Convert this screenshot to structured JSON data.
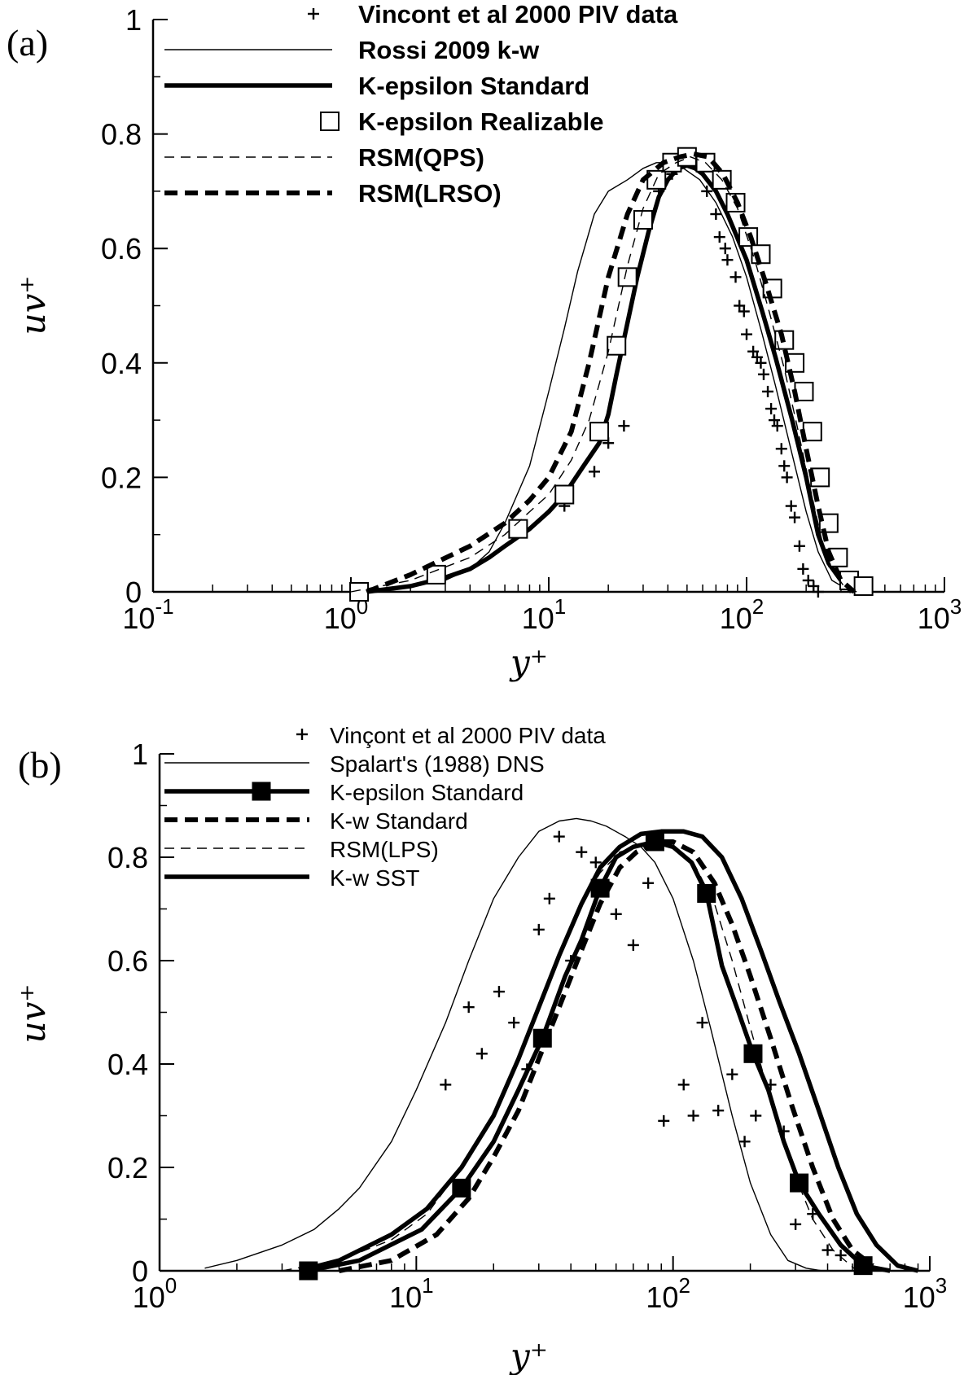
{
  "chart_data": [
    {
      "type": "line",
      "panel_label": "(a)",
      "xlabel": "y⁺",
      "ylabel": "uv⁺",
      "x_scale": "log",
      "xlim": [
        0.1,
        1000
      ],
      "ylim": [
        0,
        1
      ],
      "x_ticks": [
        {
          "value": 0.1,
          "base": "10",
          "exp": "-1"
        },
        {
          "value": 1,
          "base": "10",
          "exp": "0"
        },
        {
          "value": 10,
          "base": "10",
          "exp": "1"
        },
        {
          "value": 100,
          "base": "10",
          "exp": "2"
        },
        {
          "value": 1000,
          "base": "10",
          "exp": "3"
        }
      ],
      "y_ticks": [
        {
          "value": 0,
          "label": "0"
        },
        {
          "value": 0.2,
          "label": "0.2"
        },
        {
          "value": 0.4,
          "label": "0.4"
        },
        {
          "value": 0.6,
          "label": "0.6"
        },
        {
          "value": 0.8,
          "label": "0.8"
        },
        {
          "value": 1,
          "label": "1"
        }
      ],
      "legend_position": "top-left",
      "series": [
        {
          "name": "Vincont et al 2000 PIV data",
          "style": "plus",
          "x": [
            12,
            17,
            20,
            24,
            36,
            42,
            48,
            52,
            58,
            63,
            70,
            73,
            78,
            80,
            88,
            92,
            97,
            100,
            108,
            113,
            118,
            122,
            128,
            133,
            138,
            143,
            150,
            155,
            160,
            168,
            175,
            185,
            193,
            205,
            218,
            230
          ],
          "y": [
            0.15,
            0.21,
            0.26,
            0.29,
            0.7,
            0.73,
            0.76,
            0.75,
            0.74,
            0.7,
            0.66,
            0.62,
            0.6,
            0.58,
            0.55,
            0.5,
            0.49,
            0.45,
            0.42,
            0.41,
            0.4,
            0.38,
            0.35,
            0.32,
            0.3,
            0.29,
            0.25,
            0.22,
            0.2,
            0.15,
            0.13,
            0.08,
            0.04,
            0.02,
            0.01,
            0.0
          ]
        },
        {
          "name": "Rossi 2009 k-w",
          "style": "thin",
          "x": [
            1,
            2,
            3,
            4,
            5,
            6,
            8,
            10,
            12,
            14,
            17,
            20,
            25,
            30,
            35,
            40,
            48,
            58,
            70,
            85,
            100,
            120,
            140,
            170,
            200,
            230,
            270,
            320,
            370
          ],
          "y": [
            0.0,
            0.01,
            0.02,
            0.04,
            0.07,
            0.12,
            0.22,
            0.35,
            0.46,
            0.56,
            0.66,
            0.7,
            0.72,
            0.74,
            0.75,
            0.75,
            0.74,
            0.72,
            0.68,
            0.62,
            0.55,
            0.45,
            0.36,
            0.24,
            0.14,
            0.07,
            0.02,
            0.005,
            0.0
          ]
        },
        {
          "name": "K-epsilon Standard",
          "style": "thick",
          "x": [
            1.2,
            2,
            3,
            4,
            5,
            6,
            8,
            10,
            12,
            15,
            18,
            20,
            22,
            25,
            28,
            32,
            36,
            40,
            45,
            50,
            55,
            60,
            70,
            80,
            100,
            120,
            140,
            170,
            200,
            230,
            260,
            300,
            340
          ],
          "y": [
            0.0,
            0.01,
            0.025,
            0.04,
            0.06,
            0.08,
            0.11,
            0.14,
            0.17,
            0.22,
            0.26,
            0.31,
            0.38,
            0.47,
            0.55,
            0.63,
            0.69,
            0.72,
            0.74,
            0.745,
            0.74,
            0.73,
            0.7,
            0.66,
            0.58,
            0.49,
            0.41,
            0.3,
            0.2,
            0.1,
            0.05,
            0.02,
            0.0
          ]
        },
        {
          "name": "K-epsilon Realizable",
          "style": "square",
          "x": [
            1.1,
            2.7,
            7,
            12,
            18,
            22,
            25,
            30,
            35,
            42,
            50,
            62,
            75,
            88,
            102,
            118,
            135,
            155,
            175,
            195,
            215,
            235,
            260,
            290,
            330,
            390
          ],
          "y": [
            0.0,
            0.03,
            0.11,
            0.17,
            0.28,
            0.43,
            0.55,
            0.65,
            0.72,
            0.75,
            0.76,
            0.75,
            0.72,
            0.68,
            0.62,
            0.59,
            0.53,
            0.44,
            0.4,
            0.35,
            0.28,
            0.2,
            0.12,
            0.06,
            0.02,
            0.01
          ]
        },
        {
          "name": "RSM(QPS)",
          "style": "thin-dash",
          "x": [
            1,
            2,
            4,
            6,
            8,
            10,
            13,
            16,
            20,
            25,
            30,
            36,
            44,
            52,
            62,
            75,
            90,
            110,
            130,
            155,
            180,
            210,
            240,
            270,
            310,
            360
          ],
          "y": [
            0.0,
            0.02,
            0.06,
            0.1,
            0.14,
            0.17,
            0.23,
            0.3,
            0.42,
            0.57,
            0.67,
            0.73,
            0.75,
            0.76,
            0.75,
            0.72,
            0.67,
            0.58,
            0.49,
            0.39,
            0.29,
            0.18,
            0.09,
            0.04,
            0.01,
            0.0
          ]
        },
        {
          "name": "RSM(LRSO)",
          "style": "thick-dash",
          "x": [
            1.2,
            2,
            4,
            6,
            8,
            10,
            13,
            16,
            20,
            25,
            30,
            38,
            46,
            54,
            64,
            76,
            90,
            105,
            125,
            150,
            175,
            200,
            230,
            260,
            300,
            350
          ],
          "y": [
            0.0,
            0.03,
            0.08,
            0.12,
            0.16,
            0.2,
            0.28,
            0.4,
            0.55,
            0.66,
            0.72,
            0.75,
            0.76,
            0.765,
            0.76,
            0.73,
            0.68,
            0.62,
            0.54,
            0.45,
            0.35,
            0.25,
            0.15,
            0.07,
            0.02,
            0.0
          ]
        }
      ]
    },
    {
      "type": "line",
      "panel_label": "(b)",
      "xlabel": "y⁺",
      "ylabel": "uv⁺",
      "x_scale": "log",
      "xlim": [
        1,
        1000
      ],
      "ylim": [
        0,
        1
      ],
      "x_ticks": [
        {
          "value": 1,
          "base": "10",
          "exp": "0"
        },
        {
          "value": 10,
          "base": "10",
          "exp": "1"
        },
        {
          "value": 100,
          "base": "10",
          "exp": "2"
        },
        {
          "value": 1000,
          "base": "10",
          "exp": "3"
        }
      ],
      "y_ticks": [
        {
          "value": 0,
          "label": "0"
        },
        {
          "value": 0.2,
          "label": "0.2"
        },
        {
          "value": 0.4,
          "label": "0.4"
        },
        {
          "value": 0.6,
          "label": "0.6"
        },
        {
          "value": 0.8,
          "label": "0.8"
        },
        {
          "value": 1,
          "label": "1"
        }
      ],
      "legend_position": "top-left",
      "series": [
        {
          "name": "Vinçont et al 2000 PIV data",
          "style": "plus",
          "x": [
            13,
            16,
            18,
            21,
            24,
            27,
            30,
            33,
            36,
            40,
            44,
            50,
            60,
            70,
            80,
            92,
            110,
            120,
            130,
            150,
            170,
            190,
            210,
            240,
            270,
            300,
            350,
            400,
            450
          ],
          "y": [
            0.36,
            0.51,
            0.42,
            0.54,
            0.48,
            0.39,
            0.66,
            0.72,
            0.84,
            0.6,
            0.81,
            0.79,
            0.69,
            0.63,
            0.75,
            0.29,
            0.36,
            0.3,
            0.48,
            0.31,
            0.38,
            0.25,
            0.3,
            0.36,
            0.27,
            0.09,
            0.11,
            0.04,
            0.03
          ]
        },
        {
          "name": "Spalart's (1988) DNS",
          "style": "thin",
          "x": [
            1.5,
            2,
            3,
            4,
            5,
            6,
            8,
            10,
            13,
            16,
            20,
            25,
            30,
            36,
            42,
            48,
            55,
            65,
            75,
            85,
            100,
            120,
            140,
            170,
            200,
            240,
            280,
            330,
            380
          ],
          "y": [
            0.005,
            0.02,
            0.05,
            0.08,
            0.12,
            0.16,
            0.25,
            0.35,
            0.48,
            0.6,
            0.72,
            0.8,
            0.85,
            0.87,
            0.875,
            0.87,
            0.86,
            0.84,
            0.82,
            0.79,
            0.72,
            0.6,
            0.47,
            0.3,
            0.17,
            0.07,
            0.02,
            0.005,
            0.0
          ]
        },
        {
          "name": "K-epsilon Standard",
          "style": "thick-square",
          "x": [
            3.8,
            6,
            10.5,
            15,
            20,
            25,
            31,
            38,
            44,
            52,
            60,
            70,
            85,
            100,
            118,
            135,
            155,
            180,
            205,
            235,
            270,
            310,
            370,
            450,
            550,
            700
          ],
          "y": [
            0.0,
            0.02,
            0.08,
            0.16,
            0.25,
            0.35,
            0.45,
            0.57,
            0.64,
            0.74,
            0.8,
            0.82,
            0.83,
            0.82,
            0.79,
            0.73,
            0.59,
            0.5,
            0.42,
            0.35,
            0.25,
            0.17,
            0.11,
            0.05,
            0.01,
            0.0
          ]
        },
        {
          "name": "K-w Standard",
          "style": "thick-dash",
          "x": [
            5,
            8,
            12,
            16,
            20,
            25,
            30,
            36,
            44,
            52,
            62,
            72,
            85,
            100,
            120,
            145,
            170,
            200,
            240,
            290,
            350,
            420,
            500,
            600
          ],
          "y": [
            0.0,
            0.02,
            0.07,
            0.14,
            0.22,
            0.31,
            0.41,
            0.51,
            0.62,
            0.71,
            0.78,
            0.81,
            0.83,
            0.83,
            0.81,
            0.75,
            0.67,
            0.57,
            0.45,
            0.32,
            0.2,
            0.1,
            0.04,
            0.01
          ]
        },
        {
          "name": "RSM(LPS)",
          "style": "thin-dash",
          "x": [
            3,
            5,
            8,
            11,
            15,
            20,
            25,
            30,
            36,
            44,
            52,
            62,
            72,
            85,
            100,
            120,
            145,
            170,
            200,
            240,
            290,
            350,
            420,
            520
          ],
          "y": [
            0.0,
            0.02,
            0.06,
            0.11,
            0.2,
            0.3,
            0.41,
            0.51,
            0.61,
            0.71,
            0.77,
            0.81,
            0.82,
            0.83,
            0.82,
            0.79,
            0.71,
            0.6,
            0.47,
            0.33,
            0.2,
            0.1,
            0.04,
            0.0
          ]
        },
        {
          "name": "K-w SST",
          "style": "thick",
          "x": [
            3.5,
            5,
            8,
            11,
            15,
            20,
            25,
            30,
            36,
            44,
            52,
            62,
            75,
            90,
            110,
            130,
            155,
            185,
            220,
            260,
            310,
            370,
            440,
            520,
            620,
            750,
            900
          ],
          "y": [
            0.0,
            0.02,
            0.07,
            0.12,
            0.2,
            0.3,
            0.41,
            0.51,
            0.61,
            0.71,
            0.78,
            0.82,
            0.845,
            0.85,
            0.85,
            0.84,
            0.8,
            0.72,
            0.62,
            0.52,
            0.42,
            0.31,
            0.2,
            0.11,
            0.05,
            0.01,
            0.0
          ]
        }
      ]
    }
  ]
}
